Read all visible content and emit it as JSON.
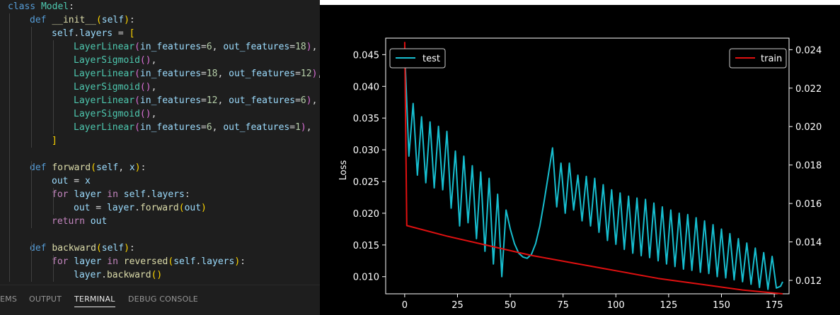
{
  "editor": {
    "lines": [
      [
        {
          "t": "class ",
          "c": "kw"
        },
        {
          "t": "Model",
          "c": "cls"
        },
        {
          "t": ":",
          "c": "op"
        }
      ],
      [
        {
          "t": "def ",
          "c": "kw"
        },
        {
          "t": "__init__",
          "c": "fn"
        },
        {
          "t": "(",
          "c": "br1"
        },
        {
          "t": "self",
          "c": "var"
        },
        {
          "t": ")",
          "c": "br1"
        },
        {
          "t": ":",
          "c": "op"
        }
      ],
      [
        {
          "t": "self",
          "c": "var"
        },
        {
          "t": ".",
          "c": "op"
        },
        {
          "t": "layers",
          "c": "var"
        },
        {
          "t": " = ",
          "c": "op"
        },
        {
          "t": "[",
          "c": "br1"
        }
      ],
      [
        {
          "t": "LayerLinear",
          "c": "cls"
        },
        {
          "t": "(",
          "c": "br2"
        },
        {
          "t": "in_features",
          "c": "var"
        },
        {
          "t": "=",
          "c": "op"
        },
        {
          "t": "6",
          "c": "num"
        },
        {
          "t": ", ",
          "c": "op"
        },
        {
          "t": "out_features",
          "c": "var"
        },
        {
          "t": "=",
          "c": "op"
        },
        {
          "t": "18",
          "c": "num"
        },
        {
          "t": ")",
          "c": "br2"
        },
        {
          "t": ",",
          "c": "op"
        }
      ],
      [
        {
          "t": "LayerSigmoid",
          "c": "cls"
        },
        {
          "t": "(",
          "c": "br2"
        },
        {
          "t": ")",
          "c": "br2"
        },
        {
          "t": ",",
          "c": "op"
        }
      ],
      [
        {
          "t": "LayerLinear",
          "c": "cls"
        },
        {
          "t": "(",
          "c": "br2"
        },
        {
          "t": "in_features",
          "c": "var"
        },
        {
          "t": "=",
          "c": "op"
        },
        {
          "t": "18",
          "c": "num"
        },
        {
          "t": ", ",
          "c": "op"
        },
        {
          "t": "out_features",
          "c": "var"
        },
        {
          "t": "=",
          "c": "op"
        },
        {
          "t": "12",
          "c": "num"
        },
        {
          "t": ")",
          "c": "br2"
        },
        {
          "t": ",",
          "c": "op"
        }
      ],
      [
        {
          "t": "LayerSigmoid",
          "c": "cls"
        },
        {
          "t": "(",
          "c": "br2"
        },
        {
          "t": ")",
          "c": "br2"
        },
        {
          "t": ",",
          "c": "op"
        }
      ],
      [
        {
          "t": "LayerLinear",
          "c": "cls"
        },
        {
          "t": "(",
          "c": "br2"
        },
        {
          "t": "in_features",
          "c": "var"
        },
        {
          "t": "=",
          "c": "op"
        },
        {
          "t": "12",
          "c": "num"
        },
        {
          "t": ", ",
          "c": "op"
        },
        {
          "t": "out_features",
          "c": "var"
        },
        {
          "t": "=",
          "c": "op"
        },
        {
          "t": "6",
          "c": "num"
        },
        {
          "t": ")",
          "c": "br2"
        },
        {
          "t": ",",
          "c": "op"
        }
      ],
      [
        {
          "t": "LayerSigmoid",
          "c": "cls"
        },
        {
          "t": "(",
          "c": "br2"
        },
        {
          "t": ")",
          "c": "br2"
        },
        {
          "t": ",",
          "c": "op"
        }
      ],
      [
        {
          "t": "LayerLinear",
          "c": "cls"
        },
        {
          "t": "(",
          "c": "br2"
        },
        {
          "t": "in_features",
          "c": "var"
        },
        {
          "t": "=",
          "c": "op"
        },
        {
          "t": "6",
          "c": "num"
        },
        {
          "t": ", ",
          "c": "op"
        },
        {
          "t": "out_features",
          "c": "var"
        },
        {
          "t": "=",
          "c": "op"
        },
        {
          "t": "1",
          "c": "num"
        },
        {
          "t": ")",
          "c": "br2"
        },
        {
          "t": ",",
          "c": "op"
        }
      ],
      [
        {
          "t": "]",
          "c": "br1"
        }
      ],
      [],
      [
        {
          "t": "def ",
          "c": "kw"
        },
        {
          "t": "forward",
          "c": "fn"
        },
        {
          "t": "(",
          "c": "br1"
        },
        {
          "t": "self",
          "c": "var"
        },
        {
          "t": ", ",
          "c": "op"
        },
        {
          "t": "x",
          "c": "var"
        },
        {
          "t": ")",
          "c": "br1"
        },
        {
          "t": ":",
          "c": "op"
        }
      ],
      [
        {
          "t": "out",
          "c": "var"
        },
        {
          "t": " = ",
          "c": "op"
        },
        {
          "t": "x",
          "c": "var"
        }
      ],
      [
        {
          "t": "for ",
          "c": "kw2"
        },
        {
          "t": "layer",
          "c": "var"
        },
        {
          "t": " in ",
          "c": "kw2"
        },
        {
          "t": "self",
          "c": "var"
        },
        {
          "t": ".",
          "c": "op"
        },
        {
          "t": "layers",
          "c": "var"
        },
        {
          "t": ":",
          "c": "op"
        }
      ],
      [
        {
          "t": "out",
          "c": "var"
        },
        {
          "t": " = ",
          "c": "op"
        },
        {
          "t": "layer",
          "c": "var"
        },
        {
          "t": ".",
          "c": "op"
        },
        {
          "t": "forward",
          "c": "fn"
        },
        {
          "t": "(",
          "c": "br1"
        },
        {
          "t": "out",
          "c": "var"
        },
        {
          "t": ")",
          "c": "br1"
        }
      ],
      [
        {
          "t": "return ",
          "c": "kw2"
        },
        {
          "t": "out",
          "c": "var"
        }
      ],
      [],
      [
        {
          "t": "def ",
          "c": "kw"
        },
        {
          "t": "backward",
          "c": "fn"
        },
        {
          "t": "(",
          "c": "br1"
        },
        {
          "t": "self",
          "c": "var"
        },
        {
          "t": ")",
          "c": "br1"
        },
        {
          "t": ":",
          "c": "op"
        }
      ],
      [
        {
          "t": "for ",
          "c": "kw2"
        },
        {
          "t": "layer",
          "c": "var"
        },
        {
          "t": " in ",
          "c": "kw2"
        },
        {
          "t": "reversed",
          "c": "fn"
        },
        {
          "t": "(",
          "c": "br1"
        },
        {
          "t": "self",
          "c": "var"
        },
        {
          "t": ".",
          "c": "op"
        },
        {
          "t": "layers",
          "c": "var"
        },
        {
          "t": ")",
          "c": "br1"
        },
        {
          "t": ":",
          "c": "op"
        }
      ],
      [
        {
          "t": "layer",
          "c": "var"
        },
        {
          "t": ".",
          "c": "op"
        },
        {
          "t": "backward",
          "c": "fn"
        },
        {
          "t": "(",
          "c": "br1"
        },
        {
          "t": ")",
          "c": "br1"
        }
      ]
    ],
    "indent_levels": [
      0,
      1,
      2,
      3,
      3,
      3,
      3,
      3,
      3,
      3,
      2,
      0,
      1,
      2,
      2,
      3,
      2,
      0,
      1,
      2,
      3
    ]
  },
  "panel": {
    "tabs": [
      "EMS",
      "OUTPUT",
      "TERMINAL",
      "DEBUG CONSOLE"
    ],
    "active_tab": "TERMINAL"
  },
  "chart_data": {
    "type": "line",
    "title": "",
    "xlabel": "",
    "ylabel": "Loss",
    "xlim": [
      -9,
      182
    ],
    "ylim": [
      0.0073,
      0.0476
    ],
    "y2lim": [
      0.0113,
      0.0246
    ],
    "xticks": [
      0,
      25,
      50,
      75,
      100,
      125,
      150,
      175
    ],
    "yticks": [
      0.01,
      0.015,
      0.02,
      0.025,
      0.03,
      0.035,
      0.04,
      0.045
    ],
    "ytick_labels": [
      "0.010",
      "0.015",
      "0.020",
      "0.025",
      "0.030",
      "0.035",
      "0.040",
      "0.045"
    ],
    "y2ticks": [
      0.012,
      0.014,
      0.016,
      0.018,
      0.02,
      0.022,
      0.024
    ],
    "y2tick_labels": [
      "0.012",
      "0.014",
      "0.016",
      "0.018",
      "0.020",
      "0.022",
      "0.024"
    ],
    "grid": false,
    "background": "#000000",
    "series": [
      {
        "name": "test",
        "axis": "left",
        "color": "#17becf",
        "legend": "top-left",
        "x": [
          0,
          2,
          4,
          6,
          8,
          10,
          12,
          14,
          16,
          18,
          20,
          22,
          24,
          26,
          28,
          30,
          32,
          34,
          36,
          38,
          40,
          42,
          44,
          46,
          48,
          50,
          52,
          54,
          56,
          58,
          60,
          62,
          64,
          66,
          68,
          70,
          72,
          74,
          76,
          78,
          80,
          82,
          84,
          86,
          88,
          90,
          92,
          94,
          96,
          98,
          100,
          102,
          104,
          106,
          108,
          110,
          112,
          114,
          116,
          118,
          120,
          122,
          124,
          126,
          128,
          130,
          132,
          134,
          136,
          138,
          140,
          142,
          144,
          146,
          148,
          150,
          152,
          154,
          156,
          158,
          160,
          162,
          164,
          166,
          168,
          170,
          172,
          174,
          176,
          178,
          179
        ],
        "y": [
          0.0455,
          0.029,
          0.0373,
          0.026,
          0.0352,
          0.0248,
          0.0344,
          0.024,
          0.0337,
          0.0237,
          0.0329,
          0.0208,
          0.0298,
          0.018,
          0.029,
          0.0185,
          0.0275,
          0.016,
          0.0265,
          0.014,
          0.0255,
          0.012,
          0.023,
          0.01,
          0.0205,
          0.0175,
          0.0152,
          0.0137,
          0.0131,
          0.0129,
          0.0135,
          0.0152,
          0.018,
          0.0218,
          0.026,
          0.0303,
          0.021,
          0.0279,
          0.02,
          0.0279,
          0.0205,
          0.026,
          0.0188,
          0.0258,
          0.018,
          0.0255,
          0.017,
          0.0245,
          0.0157,
          0.0237,
          0.0151,
          0.0232,
          0.0143,
          0.0227,
          0.0137,
          0.0224,
          0.0133,
          0.0222,
          0.013,
          0.0216,
          0.0125,
          0.021,
          0.012,
          0.0205,
          0.0116,
          0.02,
          0.0112,
          0.0198,
          0.011,
          0.0193,
          0.0107,
          0.0188,
          0.0105,
          0.0182,
          0.01,
          0.0175,
          0.0098,
          0.0168,
          0.0095,
          0.016,
          0.0092,
          0.0153,
          0.0088,
          0.0145,
          0.0083,
          0.0138,
          0.008,
          0.0132,
          0.0082,
          0.0085,
          0.0092
        ]
      },
      {
        "name": "train",
        "axis": "right",
        "color": "#e01010",
        "legend": "top-right",
        "x": [
          0,
          1,
          20,
          40,
          60,
          80,
          100,
          120,
          140,
          160,
          179
        ],
        "y": [
          0.0244,
          0.01485,
          0.0143,
          0.0138,
          0.0133,
          0.0129,
          0.0125,
          0.0121,
          0.0118,
          0.0115,
          0.0113
        ]
      }
    ]
  }
}
